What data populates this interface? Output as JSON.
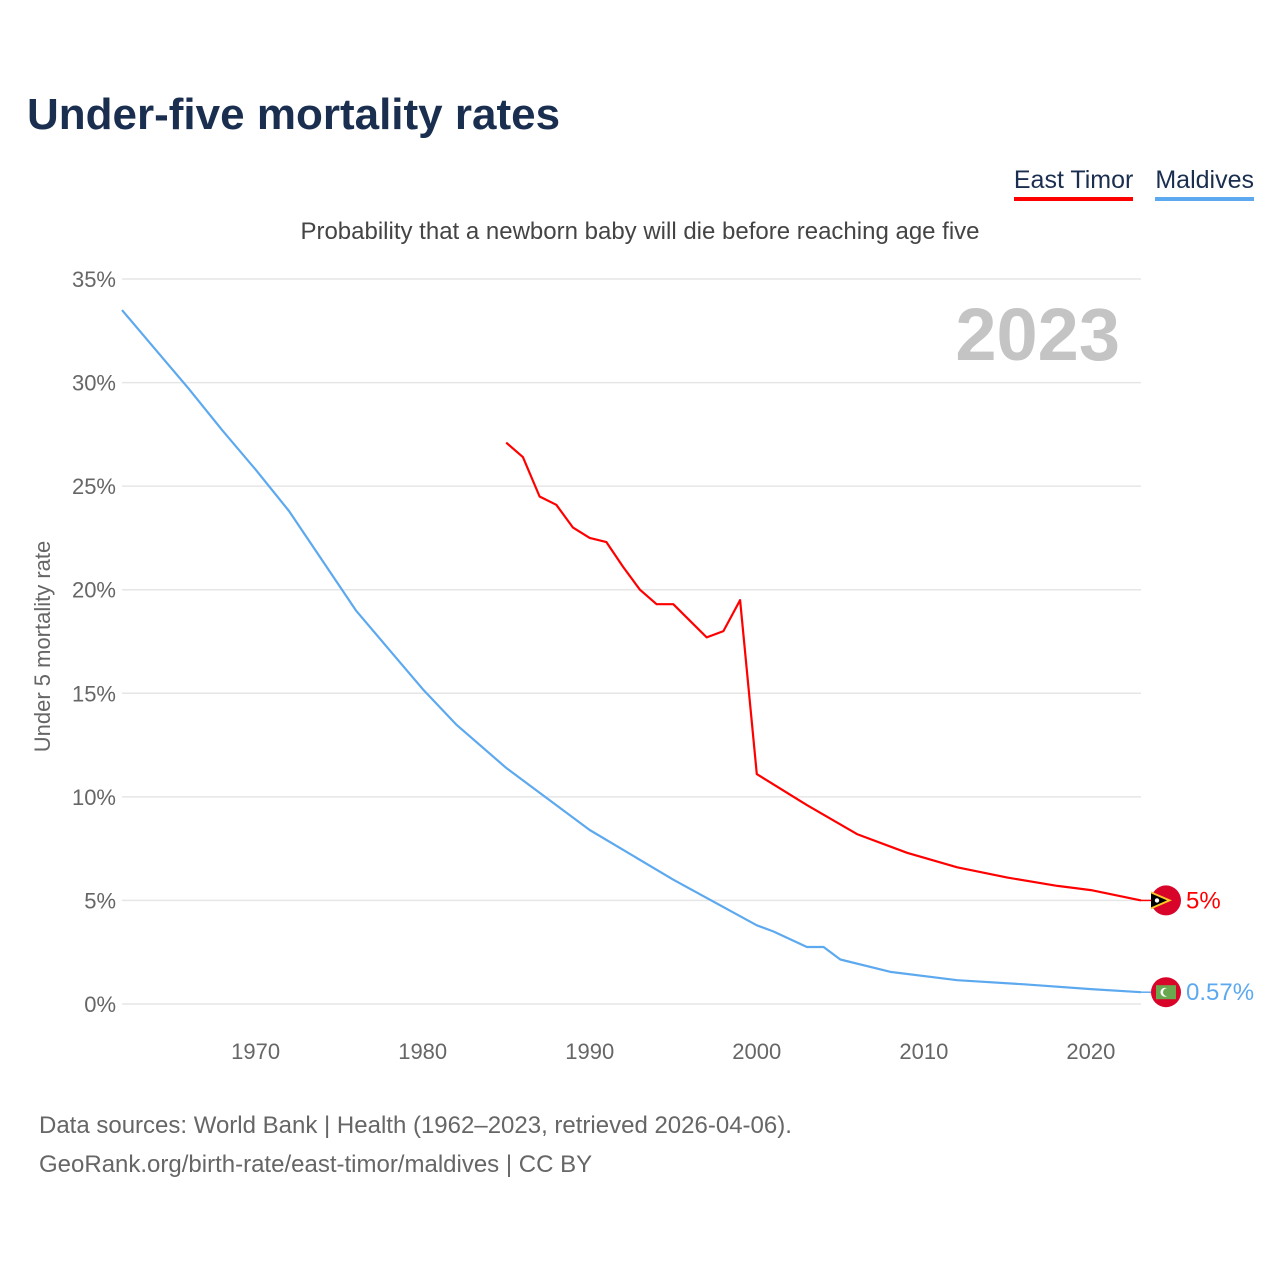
{
  "chart_data": {
    "type": "line",
    "title": "Under-five mortality rates",
    "subtitle": "Probability that a newborn baby will die before reaching age five",
    "ylabel": "Under 5 mortality rate",
    "xlabel": "",
    "xlim": [
      1962,
      2023
    ],
    "ylim": [
      0,
      35
    ],
    "x_ticks": [
      1970,
      1980,
      1990,
      2000,
      2010,
      2020
    ],
    "y_ticks": [
      0,
      5,
      10,
      15,
      20,
      25,
      30,
      35
    ],
    "y_tick_labels": [
      "0%",
      "5%",
      "10%",
      "15%",
      "20%",
      "25%",
      "30%",
      "35%"
    ],
    "year_label": "2023",
    "grid": true,
    "legend_placement": "top-right",
    "series": [
      {
        "name": "East Timor",
        "color": "#ff0000",
        "end_label": "5%",
        "points": [
          [
            1985,
            27.1
          ],
          [
            1986,
            26.4
          ],
          [
            1987,
            24.5
          ],
          [
            1988,
            24.1
          ],
          [
            1989,
            23.0
          ],
          [
            1990,
            22.5
          ],
          [
            1991,
            22.3
          ],
          [
            1992,
            21.1
          ],
          [
            1993,
            20.0
          ],
          [
            1994,
            19.3
          ],
          [
            1995,
            19.3
          ],
          [
            1996,
            18.5
          ],
          [
            1997,
            17.7
          ],
          [
            1998,
            18.0
          ],
          [
            1999,
            19.5
          ],
          [
            2000,
            11.1
          ],
          [
            2003,
            9.6
          ],
          [
            2006,
            8.2
          ],
          [
            2009,
            7.3
          ],
          [
            2012,
            6.6
          ],
          [
            2015,
            6.1
          ],
          [
            2018,
            5.7
          ],
          [
            2020,
            5.5
          ],
          [
            2023,
            5.0
          ]
        ]
      },
      {
        "name": "Maldives",
        "color": "#5da9ef",
        "end_label": "0.57%",
        "points": [
          [
            1962,
            33.5
          ],
          [
            1964,
            31.6
          ],
          [
            1966,
            29.7
          ],
          [
            1968,
            27.7
          ],
          [
            1970,
            25.8
          ],
          [
            1972,
            23.8
          ],
          [
            1974,
            21.4
          ],
          [
            1976,
            19.0
          ],
          [
            1978,
            17.1
          ],
          [
            1980,
            15.2
          ],
          [
            1982,
            13.5
          ],
          [
            1985,
            11.4
          ],
          [
            1987,
            10.2
          ],
          [
            1990,
            8.4
          ],
          [
            1995,
            6.0
          ],
          [
            2000,
            3.8
          ],
          [
            2001,
            3.5
          ],
          [
            2003,
            2.75
          ],
          [
            2004,
            2.75
          ],
          [
            2005,
            2.15
          ],
          [
            2008,
            1.55
          ],
          [
            2012,
            1.15
          ],
          [
            2016,
            0.95
          ],
          [
            2020,
            0.72
          ],
          [
            2023,
            0.57
          ]
        ]
      }
    ]
  },
  "footer": {
    "line1": "Data sources: World Bank | Health (1962–2023, retrieved 2026-04-06).",
    "line2": "GeoRank.org/birth-rate/east-timor/maldives | CC BY"
  }
}
